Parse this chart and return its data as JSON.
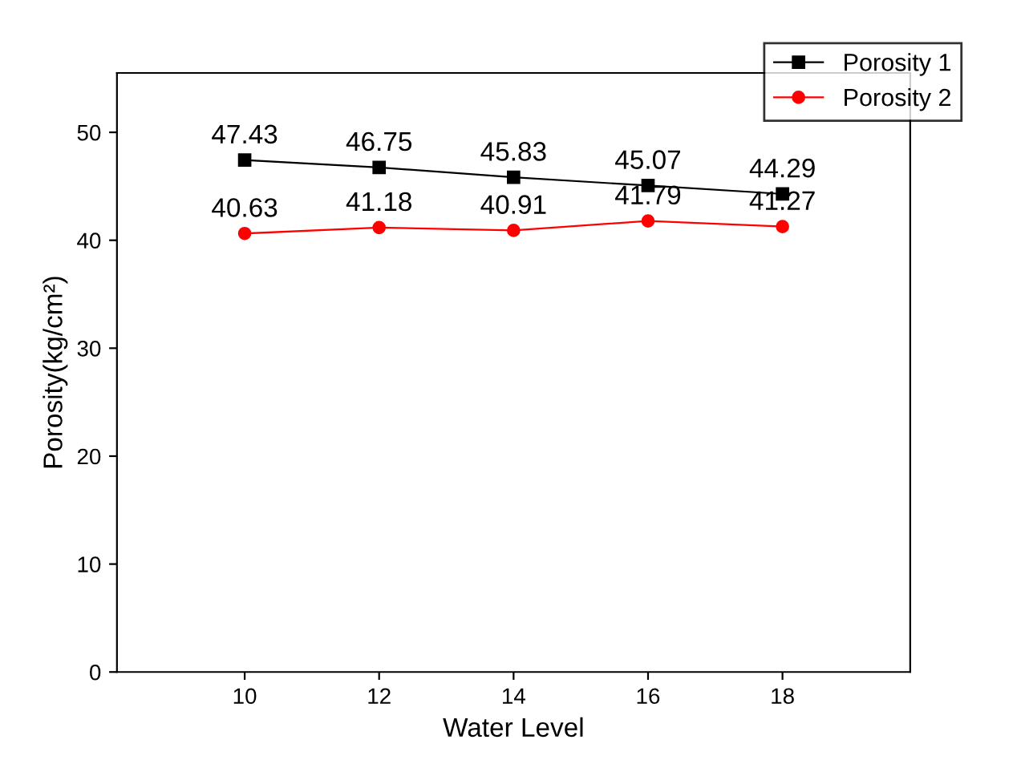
{
  "chart_data": {
    "type": "line",
    "xlabel": "Water Level",
    "ylabel": "Porosity(kg/cm²)",
    "x": [
      10,
      12,
      14,
      16,
      18
    ],
    "series": [
      {
        "name": "Porosity 1",
        "color": "#000000",
        "marker": "square",
        "values": [
          47.43,
          46.75,
          45.83,
          45.07,
          44.29
        ]
      },
      {
        "name": "Porosity 2",
        "color": "#ff0000",
        "marker": "circle",
        "values": [
          40.63,
          41.18,
          40.91,
          41.79,
          41.27
        ]
      }
    ],
    "xlim": [
      8.1,
      19.9
    ],
    "ylim": [
      0,
      55.5
    ],
    "xticks": [
      10,
      12,
      14,
      16,
      18
    ],
    "yticks": [
      0,
      10,
      20,
      30,
      40,
      50
    ],
    "data_labels": true,
    "legend": "top right",
    "grid": false
  }
}
